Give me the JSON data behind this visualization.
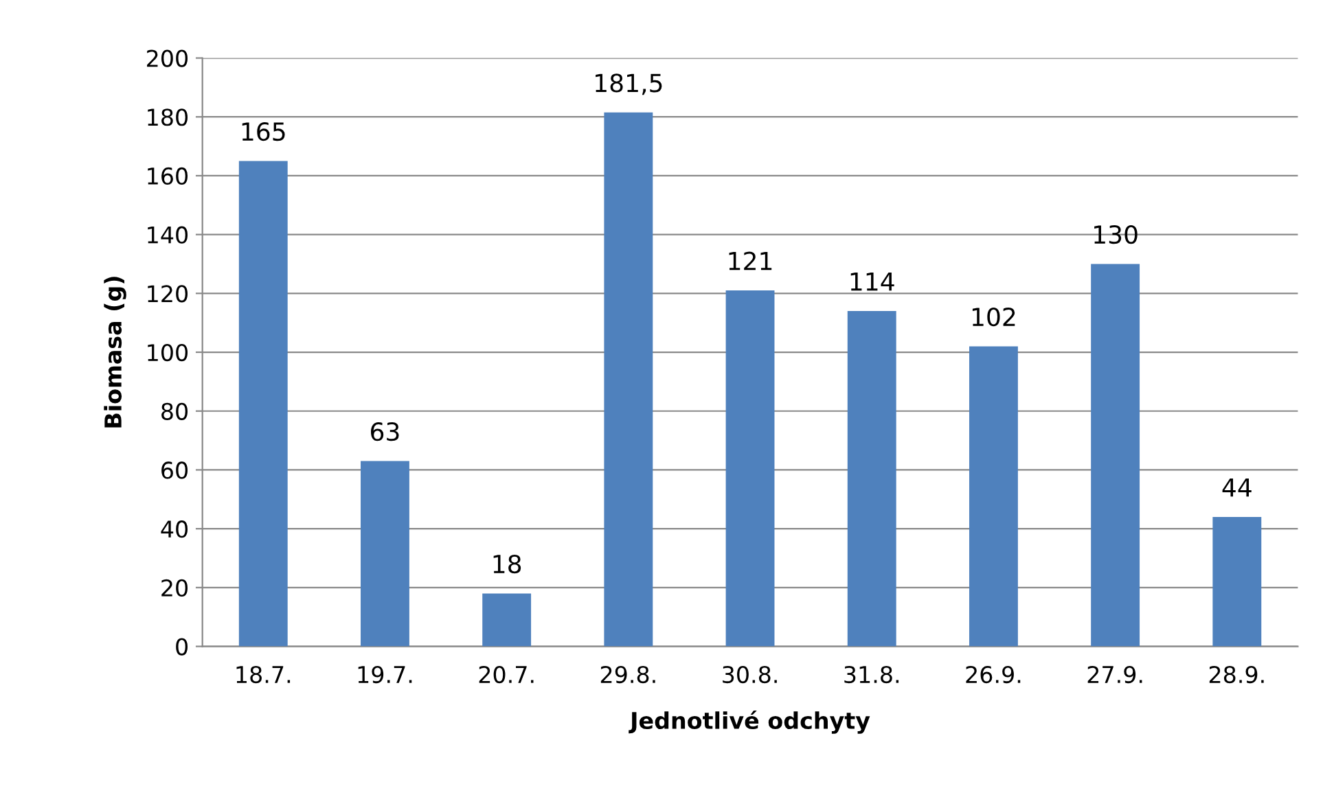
{
  "chart_data": {
    "type": "bar",
    "xlabel": "Jednotlivé odchyty",
    "ylabel": "Biomasa (g)",
    "categories": [
      "18.7.",
      "19.7.",
      "20.7.",
      "29.8.",
      "30.8.",
      "31.8.",
      "26.9.",
      "27.9.",
      "28.9."
    ],
    "values": [
      165,
      63,
      18,
      181.5,
      121,
      114,
      102,
      130,
      44
    ],
    "value_labels": [
      "165",
      "63",
      "18",
      "181,5",
      "121",
      "114",
      "102",
      "130",
      "44"
    ],
    "color": "#4f81bd",
    "ylim": [
      0,
      200
    ],
    "yticks": [
      0,
      20,
      40,
      60,
      80,
      100,
      120,
      140,
      160,
      180,
      200
    ],
    "grid": "y"
  }
}
